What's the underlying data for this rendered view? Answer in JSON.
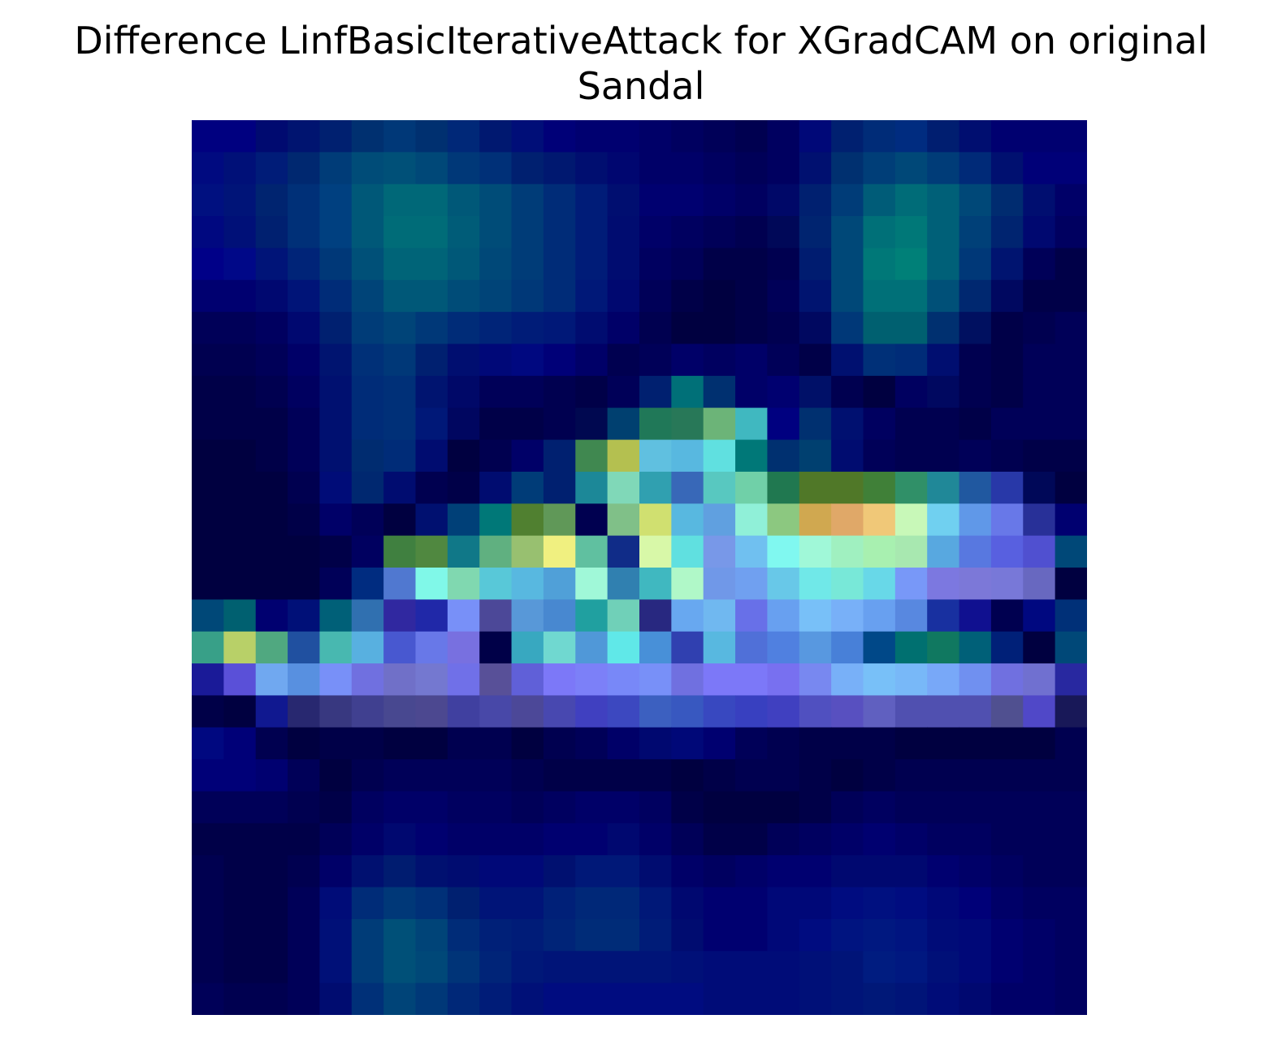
{
  "chart_data": {
    "type": "heatmap",
    "title_lines": [
      "Difference LinfBasicIterativeAttack for XGradCAM on original",
      "Sandal"
    ],
    "xlabel": "",
    "ylabel": "",
    "axes_visible": false,
    "grid": false,
    "legend": "none",
    "rows": 28,
    "cols": 28,
    "colormap": "jet heatmap overlay on grayscale input image",
    "pixels": [
      [
        "#000080",
        "#000080",
        "#000a70",
        "#001470",
        "#002070",
        "#003070",
        "#003878",
        "#003070",
        "#002878",
        "#001870",
        "#000e78",
        "#000078",
        "#000070",
        "#000070",
        "#000068",
        "#000060",
        "#000058",
        "#000050",
        "#000060",
        "#000878",
        "#002070",
        "#002c78",
        "#002c80",
        "#001e70",
        "#000e70",
        "#000070",
        "#000070",
        "#000070"
      ],
      [
        "#000a80",
        "#001078",
        "#001c78",
        "#002870",
        "#003c78",
        "#004c78",
        "#005078",
        "#004878",
        "#003878",
        "#003078",
        "#002070",
        "#001870",
        "#000e70",
        "#000670",
        "#000068",
        "#000068",
        "#000060",
        "#000058",
        "#000060",
        "#001070",
        "#003070",
        "#003e78",
        "#004878",
        "#003c78",
        "#002a78",
        "#001070",
        "#000078",
        "#000078"
      ],
      [
        "#001080",
        "#001478",
        "#002470",
        "#003078",
        "#004080",
        "#005878",
        "#006878",
        "#006878",
        "#005878",
        "#004c78",
        "#003c78",
        "#002c78",
        "#001c78",
        "#000e70",
        "#000070",
        "#000070",
        "#000068",
        "#000060",
        "#000868",
        "#002070",
        "#003c78",
        "#005c78",
        "#006c78",
        "#006078",
        "#004878",
        "#002c70",
        "#000e70",
        "#000068"
      ],
      [
        "#000880",
        "#001078",
        "#002070",
        "#003078",
        "#004080",
        "#005878",
        "#006c78",
        "#006c78",
        "#005c78",
        "#004c78",
        "#003c78",
        "#002c78",
        "#001c78",
        "#000c70",
        "#000068",
        "#000060",
        "#000058",
        "#000050",
        "#000858",
        "#002470",
        "#004878",
        "#007078",
        "#007878",
        "#006078",
        "#004078",
        "#002470",
        "#000870",
        "#000060"
      ],
      [
        "#000088",
        "#000888",
        "#001478",
        "#002478",
        "#003878",
        "#005078",
        "#006478",
        "#006478",
        "#005878",
        "#004878",
        "#003c78",
        "#002c78",
        "#001c78",
        "#000c70",
        "#000060",
        "#000058",
        "#000048",
        "#000048",
        "#000050",
        "#001c70",
        "#004878",
        "#007878",
        "#008078",
        "#006078",
        "#003878",
        "#001470",
        "#000058",
        "#000048"
      ],
      [
        "#000070",
        "#000070",
        "#000870",
        "#001478",
        "#002c78",
        "#004478",
        "#005878",
        "#005878",
        "#004c78",
        "#004478",
        "#003878",
        "#002c78",
        "#001878",
        "#000870",
        "#000058",
        "#000048",
        "#000040",
        "#000048",
        "#000058",
        "#001470",
        "#004878",
        "#007078",
        "#007078",
        "#005078",
        "#002870",
        "#000860",
        "#000048",
        "#000048"
      ],
      [
        "#000058",
        "#000058",
        "#000060",
        "#000870",
        "#002070",
        "#003c78",
        "#004478",
        "#003878",
        "#002c78",
        "#002478",
        "#001c78",
        "#001878",
        "#000c70",
        "#000068",
        "#000050",
        "#000040",
        "#000040",
        "#000048",
        "#000050",
        "#000860",
        "#003878",
        "#006070",
        "#006070",
        "#003070",
        "#001060",
        "#000048",
        "#000050",
        "#000058"
      ],
      [
        "#000050",
        "#000050",
        "#000058",
        "#000068",
        "#001470",
        "#003078",
        "#003878",
        "#002070",
        "#000e70",
        "#000878",
        "#000880",
        "#000078",
        "#000068",
        "#000050",
        "#000058",
        "#000068",
        "#000060",
        "#000068",
        "#000058",
        "#000048",
        "#001070",
        "#003078",
        "#002c78",
        "#000e70",
        "#000050",
        "#000048",
        "#000058",
        "#000058"
      ],
      [
        "#000048",
        "#000048",
        "#000050",
        "#000060",
        "#001070",
        "#002c78",
        "#003078",
        "#001470",
        "#000868",
        "#000058",
        "#000058",
        "#000050",
        "#000048",
        "#000058",
        "#002070",
        "#007078",
        "#003070",
        "#000068",
        "#000070",
        "#001068",
        "#000050",
        "#000040",
        "#000060",
        "#000860",
        "#000050",
        "#000048",
        "#000058",
        "#000058"
      ],
      [
        "#000048",
        "#000048",
        "#000048",
        "#000058",
        "#001070",
        "#002c78",
        "#003078",
        "#001878",
        "#000660",
        "#000048",
        "#000048",
        "#000050",
        "#000850",
        "#004070",
        "#207858",
        "#287858",
        "#6cb478",
        "#40b8c0",
        "#000080",
        "#003070",
        "#001070",
        "#000060",
        "#000050",
        "#000050",
        "#000048",
        "#000058",
        "#000058",
        "#000058"
      ],
      [
        "#000040",
        "#000040",
        "#000048",
        "#000058",
        "#001070",
        "#002c70",
        "#002c78",
        "#000c70",
        "#000040",
        "#000050",
        "#000068",
        "#002070",
        "#408850",
        "#b4c050",
        "#60c0e0",
        "#58b8e0",
        "#60e0e0",
        "#007878",
        "#003070",
        "#004070",
        "#000c70",
        "#000058",
        "#000050",
        "#000050",
        "#000058",
        "#000050",
        "#000048",
        "#000048"
      ],
      [
        "#000040",
        "#000040",
        "#000040",
        "#000050",
        "#000c78",
        "#002870",
        "#000c70",
        "#000050",
        "#000048",
        "#000c70",
        "#003c78",
        "#002070",
        "#1c8898",
        "#80d8b8",
        "#30a0b0",
        "#3868b8",
        "#58c8c0",
        "#70d0a8",
        "#207850",
        "#507828",
        "#507828",
        "#408038",
        "#309068",
        "#208898",
        "#2058a0",
        "#2838a8",
        "#000858",
        "#000040"
      ],
      [
        "#000040",
        "#000040",
        "#000040",
        "#000048",
        "#000068",
        "#000058",
        "#000040",
        "#001070",
        "#004078",
        "#007878",
        "#508030",
        "#609858",
        "#000050",
        "#80c088",
        "#d0e070",
        "#58b8e0",
        "#60a0e0",
        "#90f0d8",
        "#8cc880",
        "#d0a850",
        "#e0a868",
        "#f0c878",
        "#c8f8b8",
        "#70d0f0",
        "#6098e8",
        "#6878e8",
        "#283098",
        "#000070"
      ],
      [
        "#000040",
        "#000040",
        "#000040",
        "#000040",
        "#000048",
        "#000060",
        "#408040",
        "#508840",
        "#107888",
        "#60b080",
        "#98c070",
        "#f0f080",
        "#60c0a0",
        "#102c88",
        "#d8f8a8",
        "#60e0e0",
        "#7898e8",
        "#70c0f0",
        "#80f8f0",
        "#a0f8d8",
        "#a0f0c0",
        "#a8f0b0",
        "#a8e8b0",
        "#58a8e0",
        "#5878e0",
        "#5860e0",
        "#5050d0",
        "#004878"
      ],
      [
        "#000040",
        "#000040",
        "#000040",
        "#000040",
        "#000058",
        "#002c80",
        "#5078d0",
        "#80f8e8",
        "#80d8b0",
        "#58c8d8",
        "#58b8e0",
        "#50a0d8",
        "#a0f8d8",
        "#3080b0",
        "#40b8c0",
        "#b0f8c8",
        "#7098e8",
        "#70a0f0",
        "#68c8e8",
        "#70e8e8",
        "#78e8d8",
        "#68d8e8",
        "#7898f8",
        "#7c78e0",
        "#7c78d8",
        "#7878d8",
        "#6868c0",
        "#000040"
      ],
      [
        "#004878",
        "#006070",
        "#000070",
        "#001078",
        "#006078",
        "#3070b0",
        "#3028a0",
        "#2028a8",
        "#7890f8",
        "#4c4898",
        "#5898d8",
        "#4888d0",
        "#20a0a0",
        "#70d0b8",
        "#282880",
        "#68a8f0",
        "#70b8f0",
        "#6870e8",
        "#68a0f0",
        "#78c0f8",
        "#78b0f8",
        "#68a0f0",
        "#5888e0",
        "#1830a0",
        "#101090",
        "#000050",
        "#000880",
        "#003078"
      ],
      [
        "#38a088",
        "#b8d068",
        "#50a880",
        "#2050a0",
        "#48b8b0",
        "#58b0e0",
        "#4858d0",
        "#6878e8",
        "#7870e0",
        "#000048",
        "#38a8c0",
        "#70d8d0",
        "#5098d8",
        "#60e8e8",
        "#4890d8",
        "#3040b0",
        "#58b8e0",
        "#5070d8",
        "#5080e0",
        "#5898e0",
        "#4880d8",
        "#004888",
        "#007070",
        "#107860",
        "#006078",
        "#002078",
        "#000040",
        "#004878"
      ],
      [
        "#1a1a98",
        "#5a50d8",
        "#70a8f0",
        "#5890e0",
        "#7890f8",
        "#7070e0",
        "#7070c8",
        "#7478d0",
        "#7070e8",
        "#585098",
        "#6060d8",
        "#7c78f8",
        "#7c80f8",
        "#7888f8",
        "#7890f8",
        "#7070e0",
        "#7c78f8",
        "#7c78f8",
        "#7870f0",
        "#7888f0",
        "#78b0f8",
        "#78c0f8",
        "#78b8f8",
        "#78a8f8",
        "#7090f0",
        "#7070e0",
        "#7070d0",
        "#2828a0"
      ],
      [
        "#000048",
        "#000040",
        "#101890",
        "#282870",
        "#383880",
        "#404090",
        "#484890",
        "#4c4890",
        "#4040a0",
        "#4848a8",
        "#4c4898",
        "#4848b0",
        "#4040c0",
        "#3c48c0",
        "#3c60c0",
        "#3858c0",
        "#3848c0",
        "#3840c0",
        "#4040c0",
        "#5050c0",
        "#5850c0",
        "#6060c0",
        "#5050b0",
        "#5050b0",
        "#5050b0",
        "#505090",
        "#5048c8",
        "#181858"
      ],
      [
        "#000880",
        "#000078",
        "#000050",
        "#000040",
        "#000048",
        "#000048",
        "#000040",
        "#000040",
        "#000050",
        "#000050",
        "#000040",
        "#000050",
        "#000058",
        "#000068",
        "#000870",
        "#000878",
        "#000070",
        "#000058",
        "#000050",
        "#000048",
        "#000048",
        "#000048",
        "#000040",
        "#000040",
        "#000040",
        "#000040",
        "#000040",
        "#000050"
      ],
      [
        "#000078",
        "#000078",
        "#000070",
        "#000058",
        "#000040",
        "#000050",
        "#000058",
        "#000058",
        "#000058",
        "#000058",
        "#000050",
        "#000048",
        "#000048",
        "#000048",
        "#000048",
        "#000040",
        "#000048",
        "#000050",
        "#000050",
        "#000048",
        "#000040",
        "#000048",
        "#000050",
        "#000050",
        "#000050",
        "#000050",
        "#000050",
        "#000050"
      ],
      [
        "#000058",
        "#000058",
        "#000058",
        "#000050",
        "#000048",
        "#000060",
        "#000068",
        "#000068",
        "#000060",
        "#000060",
        "#000058",
        "#000060",
        "#000068",
        "#000068",
        "#000060",
        "#000048",
        "#000040",
        "#000040",
        "#000040",
        "#000048",
        "#000058",
        "#000060",
        "#000058",
        "#000058",
        "#000058",
        "#000058",
        "#000058",
        "#000058"
      ],
      [
        "#000048",
        "#000048",
        "#000048",
        "#000048",
        "#000058",
        "#000068",
        "#000870",
        "#000070",
        "#000068",
        "#000068",
        "#000068",
        "#000070",
        "#000070",
        "#000870",
        "#000068",
        "#000058",
        "#000048",
        "#000048",
        "#000058",
        "#000060",
        "#000068",
        "#000070",
        "#000068",
        "#000060",
        "#000060",
        "#000058",
        "#000058",
        "#000058"
      ],
      [
        "#000050",
        "#000048",
        "#000048",
        "#000050",
        "#000068",
        "#001070",
        "#001c70",
        "#001070",
        "#000c70",
        "#000878",
        "#000878",
        "#001070",
        "#001878",
        "#001878",
        "#000c70",
        "#000068",
        "#000060",
        "#000068",
        "#000070",
        "#000070",
        "#000870",
        "#000870",
        "#000870",
        "#000070",
        "#000068",
        "#000060",
        "#000058",
        "#000058"
      ],
      [
        "#000050",
        "#000048",
        "#000048",
        "#000058",
        "#000c78",
        "#002c78",
        "#003878",
        "#003078",
        "#002070",
        "#001478",
        "#001478",
        "#002078",
        "#002878",
        "#002878",
        "#001878",
        "#000870",
        "#000070",
        "#000070",
        "#000878",
        "#000878",
        "#000c80",
        "#001080",
        "#000c80",
        "#000878",
        "#000078",
        "#000068",
        "#000060",
        "#000060"
      ],
      [
        "#000050",
        "#000048",
        "#000048",
        "#000058",
        "#001078",
        "#003c78",
        "#005078",
        "#004478",
        "#002c78",
        "#002078",
        "#001c78",
        "#002478",
        "#002c78",
        "#002c78",
        "#001c78",
        "#000c70",
        "#000070",
        "#000070",
        "#000878",
        "#000c80",
        "#001480",
        "#001880",
        "#001480",
        "#000c78",
        "#000878",
        "#000070",
        "#000068",
        "#000060"
      ],
      [
        "#000050",
        "#000048",
        "#000048",
        "#000058",
        "#001078",
        "#003c78",
        "#005078",
        "#004878",
        "#003478",
        "#002478",
        "#001878",
        "#001478",
        "#001478",
        "#001478",
        "#001478",
        "#001078",
        "#000c78",
        "#000c78",
        "#000c78",
        "#001078",
        "#001478",
        "#001c80",
        "#001880",
        "#001078",
        "#000878",
        "#000070",
        "#000068",
        "#000060"
      ],
      [
        "#000058",
        "#000050",
        "#000050",
        "#000058",
        "#000c70",
        "#003078",
        "#004478",
        "#003878",
        "#002878",
        "#001c78",
        "#001078",
        "#000c80",
        "#000c80",
        "#000c80",
        "#000c80",
        "#000c80",
        "#000c78",
        "#000c78",
        "#000c78",
        "#001078",
        "#001478",
        "#001878",
        "#001478",
        "#000c78",
        "#000870",
        "#000068",
        "#000068",
        "#000060"
      ]
    ]
  }
}
